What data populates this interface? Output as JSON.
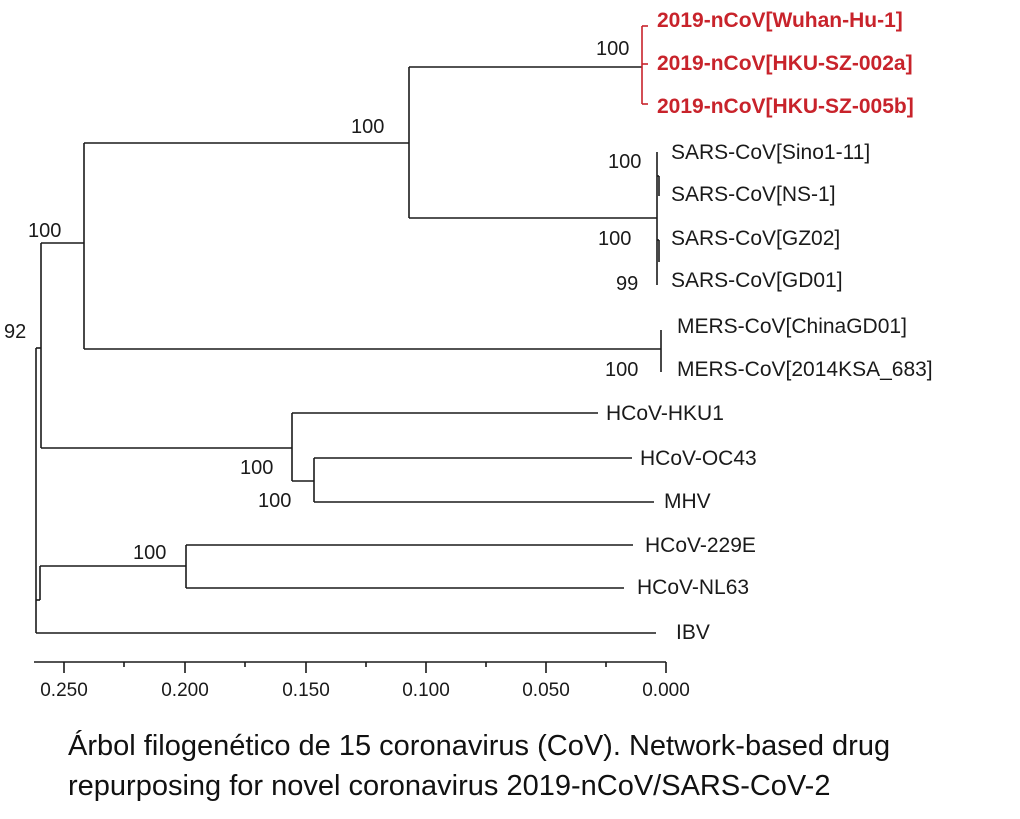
{
  "tree": {
    "leaves": [
      {
        "label": "2019-nCoV[Wuhan-Hu-1]",
        "highlight": true
      },
      {
        "label": "2019-nCoV[HKU-SZ-002a]",
        "highlight": true
      },
      {
        "label": "2019-nCoV[HKU-SZ-005b]",
        "highlight": true
      },
      {
        "label": "SARS-CoV[Sino1-11]",
        "highlight": false
      },
      {
        "label": "SARS-CoV[NS-1]",
        "highlight": false
      },
      {
        "label": "SARS-CoV[GZ02]",
        "highlight": false
      },
      {
        "label": "SARS-CoV[GD01]",
        "highlight": false
      },
      {
        "label": "MERS-CoV[ChinaGD01]",
        "highlight": false
      },
      {
        "label": "MERS-CoV[2014KSA_683]",
        "highlight": false
      },
      {
        "label": "HCoV-HKU1",
        "highlight": false
      },
      {
        "label": "HCoV-OC43",
        "highlight": false
      },
      {
        "label": "MHV",
        "highlight": false
      },
      {
        "label": "HCoV-229E",
        "highlight": false
      },
      {
        "label": "HCoV-NL63",
        "highlight": false
      },
      {
        "label": "IBV",
        "highlight": false
      }
    ],
    "bootstrap": [
      "100",
      "100",
      "100",
      "100",
      "99",
      "100",
      "100",
      "100",
      "100",
      "100",
      "92"
    ],
    "axis_ticks": [
      "0.250",
      "0.200",
      "0.150",
      "0.100",
      "0.050",
      "0.000"
    ],
    "highlight_color": "#c8232b"
  },
  "caption": "Árbol filogenético de 15 coronavirus (CoV). Network-based drug repurposing for novel coronavirus 2019-nCoV/SARS-CoV-2"
}
